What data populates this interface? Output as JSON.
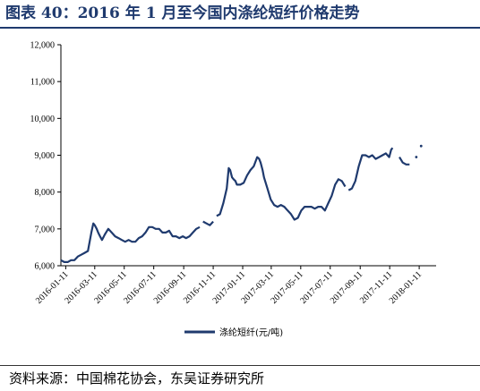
{
  "header": {
    "title": "图表 40：2016 年 1 月至今国内涤纶短纤价格走势"
  },
  "footer": {
    "source": "资料来源：中国棉花协会，东吴证券研究所"
  },
  "chart_data": {
    "type": "line",
    "title": "图表 40：2016 年 1 月至今国内涤纶短纤价格走势",
    "xlabel": "",
    "ylabel": "",
    "ylim": [
      6000,
      12000
    ],
    "xlim": [
      "2016-01-01",
      "2018-02-15"
    ],
    "y_ticks": [
      6000,
      7000,
      8000,
      9000,
      10000,
      11000,
      12000
    ],
    "y_tick_labels": [
      "6,000",
      "7,000",
      "8,000",
      "9,000",
      "10,000",
      "11,000",
      "12,000"
    ],
    "x_ticks": [
      "2016-01-11",
      "2016-03-11",
      "2016-05-11",
      "2016-07-11",
      "2016-09-11",
      "2016-11-11",
      "2017-01-11",
      "2017-03-11",
      "2017-05-11",
      "2017-07-11",
      "2017-09-11",
      "2017-11-11",
      "2018-01-11"
    ],
    "grid": false,
    "legend_position": "bottom-center",
    "line_color": "#1f3a6e",
    "series": [
      {
        "name": "涤纶短纤(元/吨)",
        "segments": [
          {
            "x": [
              "2016-01-01",
              "2016-01-08",
              "2016-01-15",
              "2016-01-22",
              "2016-01-29",
              "2016-02-05",
              "2016-02-12",
              "2016-02-19",
              "2016-02-26",
              "2016-03-04",
              "2016-03-08",
              "2016-03-11",
              "2016-03-15",
              "2016-03-18",
              "2016-03-22",
              "2016-03-26",
              "2016-04-01",
              "2016-04-08",
              "2016-04-15",
              "2016-04-22",
              "2016-04-29",
              "2016-05-06",
              "2016-05-13",
              "2016-05-20",
              "2016-05-27",
              "2016-06-03",
              "2016-06-10",
              "2016-06-17",
              "2016-06-24",
              "2016-07-01",
              "2016-07-08",
              "2016-07-15",
              "2016-07-22",
              "2016-07-29",
              "2016-08-05",
              "2016-08-12",
              "2016-08-19",
              "2016-08-26",
              "2016-09-02",
              "2016-09-09",
              "2016-09-16",
              "2016-09-23",
              "2016-09-30",
              "2016-10-07",
              "2016-10-14"
            ],
            "y": [
              6150,
              6100,
              6100,
              6150,
              6150,
              6250,
              6300,
              6350,
              6400,
              6900,
              7150,
              7100,
              7000,
              6900,
              6800,
              6700,
              6850,
              7000,
              6900,
              6800,
              6750,
              6700,
              6650,
              6700,
              6650,
              6650,
              6750,
              6800,
              6900,
              7050,
              7050,
              7000,
              7000,
              6900,
              6900,
              6950,
              6800,
              6800,
              6750,
              6800,
              6750,
              6800,
              6900,
              7000,
              7050
            ]
          },
          {
            "x": [
              "2016-10-21",
              "2016-10-28",
              "2016-11-04",
              "2016-11-11"
            ],
            "y": [
              7200,
              7150,
              7100,
              7200
            ]
          },
          {
            "x": [
              "2016-11-18",
              "2016-11-25",
              "2016-12-02",
              "2016-12-09",
              "2016-12-13",
              "2016-12-16",
              "2016-12-20",
              "2016-12-23",
              "2016-12-27",
              "2016-12-30",
              "2017-01-06",
              "2017-01-13",
              "2017-01-20",
              "2017-01-27",
              "2017-02-03",
              "2017-02-10",
              "2017-02-14",
              "2017-02-17",
              "2017-02-21",
              "2017-02-24",
              "2017-03-03",
              "2017-03-10",
              "2017-03-17",
              "2017-03-24",
              "2017-03-31",
              "2017-04-07",
              "2017-04-14",
              "2017-04-21",
              "2017-04-28",
              "2017-05-05",
              "2017-05-12",
              "2017-05-19",
              "2017-05-26",
              "2017-06-02",
              "2017-06-09",
              "2017-06-16",
              "2017-06-23",
              "2017-06-30",
              "2017-07-07",
              "2017-07-14",
              "2017-07-21",
              "2017-07-28",
              "2017-08-04",
              "2017-08-11"
            ],
            "y": [
              7350,
              7400,
              7700,
              8100,
              8650,
              8600,
              8400,
              8350,
              8300,
              8200,
              8200,
              8250,
              8450,
              8600,
              8700,
              8950,
              8900,
              8800,
              8600,
              8400,
              8100,
              7800,
              7650,
              7600,
              7650,
              7600,
              7500,
              7400,
              7250,
              7300,
              7500,
              7600,
              7600,
              7600,
              7550,
              7600,
              7600,
              7500,
              7700,
              7900,
              8200,
              8350,
              8300,
              8150
            ]
          },
          {
            "x": [
              "2017-08-18",
              "2017-08-25",
              "2017-09-01",
              "2017-09-08",
              "2017-09-15",
              "2017-09-22",
              "2017-09-29",
              "2017-10-06",
              "2017-10-13",
              "2017-10-20",
              "2017-10-27",
              "2017-11-03",
              "2017-11-10",
              "2017-11-14",
              "2017-11-17"
            ],
            "y": [
              8050,
              8100,
              8300,
              8700,
              9000,
              9000,
              8950,
              9000,
              8900,
              8950,
              9000,
              9050,
              8950,
              9150,
              9200
            ]
          },
          {
            "x": [
              "2017-12-01",
              "2017-12-08",
              "2017-12-15",
              "2017-12-22"
            ],
            "y": [
              8950,
              8800,
              8750,
              8750
            ]
          },
          {
            "x": [
              "2018-01-05"
            ],
            "y": [
              8950
            ]
          },
          {
            "x": [
              "2018-01-15"
            ],
            "y": [
              9250
            ]
          }
        ]
      }
    ]
  }
}
